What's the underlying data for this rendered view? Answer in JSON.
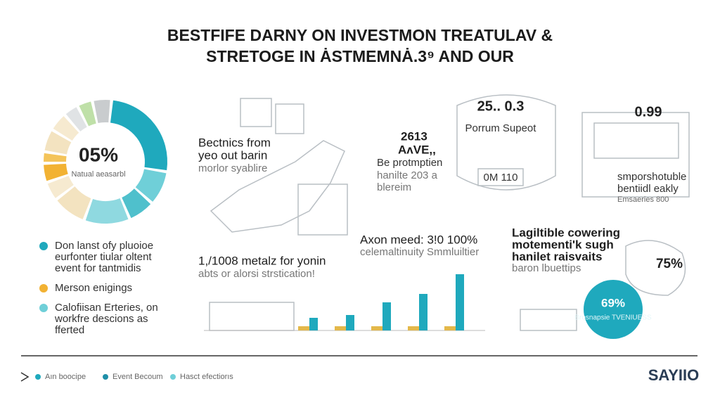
{
  "header": {
    "title": [
      "BESTFIFE DARNY ON INVESTMON TREATULAV &",
      "STRETOGE IN ȦSTMEMNȦ.3⁹ AND OUR"
    ]
  },
  "donut": {
    "center": "05%",
    "caption": "Natual aeasarbl",
    "segments": [
      {
        "value": 26,
        "color": "#1fa9bd"
      },
      {
        "value": 9,
        "color": "#6fcfd8"
      },
      {
        "value": 7,
        "color": "#4fc0cc"
      },
      {
        "value": 12,
        "color": "#8fd9e0"
      },
      {
        "value": 9,
        "color": "#f3e3c0"
      },
      {
        "value": 5,
        "color": "#f6ead0"
      },
      {
        "value": 5,
        "color": "#f2b233"
      },
      {
        "value": 3,
        "color": "#f4c45a"
      },
      {
        "value": 6,
        "color": "#f3e3c0"
      },
      {
        "value": 5,
        "color": "#f6ead0"
      },
      {
        "value": 4,
        "color": "#e0e3e5"
      },
      {
        "value": 4,
        "color": "#bfe0a8"
      },
      {
        "value": 5,
        "color": "#c9ccce"
      }
    ]
  },
  "legend": [
    {
      "color": "#1fa9bd",
      "lines": [
        "Don lanst ofy pluoioe",
        "eurfonter tiular oltent",
        "event for tantmidis"
      ]
    },
    {
      "color": "#f2b233",
      "lines": [
        "Merson enigings"
      ]
    },
    {
      "color": "#6fcfd8",
      "lines": [
        "Calofiisan Erteries, on",
        "workfre descions as",
        "fferted"
      ]
    }
  ],
  "panels": [
    {
      "lines": [
        "Bectnics from",
        "yeo out barin",
        "morlor syablire"
      ]
    },
    {
      "lines": [
        "2613",
        "AʌVE,,",
        "Be protmptien",
        "hanilte 203 a",
        "blereim"
      ],
      "badge": "25.. 0.3",
      "caption": "Porrum Supeot",
      "code": "0M 110"
    },
    {
      "value": "0.99",
      "lines": [
        "smporshotuble",
        "bentiidl eakly",
        "Emsaeries 800"
      ]
    },
    {
      "lines": [
        "Lagiltible cowering",
        "motementi'k sugh",
        "hanilet raisvaits",
        "baron lbuettips"
      ],
      "value": "75%",
      "circle_value": "69%",
      "circle_caption": "Brosnapsie TVENIUESS"
    }
  ],
  "bars": {
    "lines": [
      "Axon meed: 3!0 100%",
      "celemaltinuity Smmluiltier",
      "1,/1008 metalz for yonin",
      "abts or alorsi strstication!"
    ],
    "color": "#1fa9bd",
    "values": [
      18,
      22,
      40,
      52,
      80
    ]
  },
  "footer": {
    "legend": [
      {
        "color": "#1fa9bd",
        "label": "Aın boocipe"
      },
      {
        "color": "#1f8fa8",
        "label": "Event Becoum"
      },
      {
        "color": "#6fcfd8",
        "label": "Hasct efectiorıs"
      }
    ],
    "logo": "SAYIIO"
  }
}
